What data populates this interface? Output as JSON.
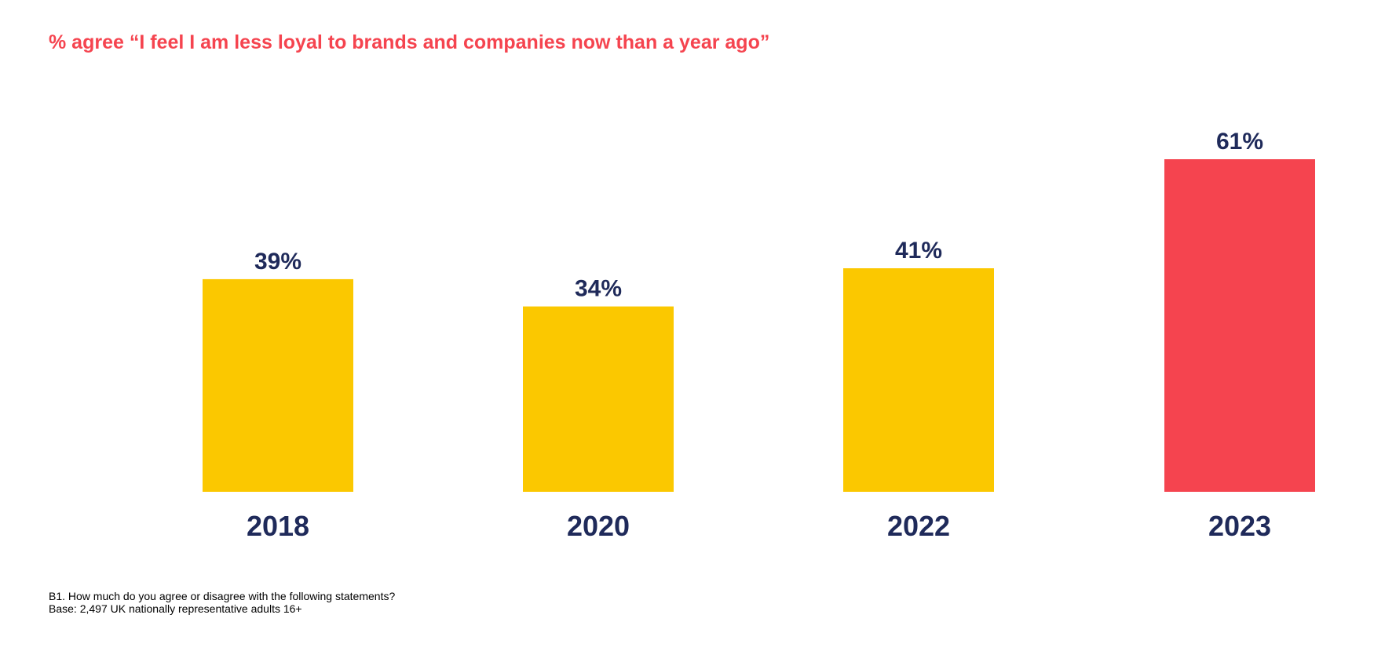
{
  "chart_data": {
    "type": "bar",
    "title": "% agree “I feel I am less loyal to brands and companies now than a year ago”",
    "categories": [
      "2018",
      "2020",
      "2022",
      "2023"
    ],
    "values": [
      39,
      34,
      41,
      61
    ],
    "value_labels": [
      "39%",
      "34%",
      "41%",
      "61%"
    ],
    "xlabel": "",
    "ylabel": "",
    "ylim": [
      0,
      61
    ],
    "grid": false,
    "legend": "none",
    "colors": [
      "#fbc800",
      "#fbc800",
      "#fbc800",
      "#f5444f"
    ]
  },
  "colors": {
    "title": "#f5444f",
    "label": "#1f2a5a",
    "highlight": "#f5444f",
    "bar": "#fbc800"
  },
  "footnote": {
    "question": "B1. How much do you agree or disagree with the following statements?",
    "base": "Base: 2,497 UK nationally representative adults 16+"
  }
}
